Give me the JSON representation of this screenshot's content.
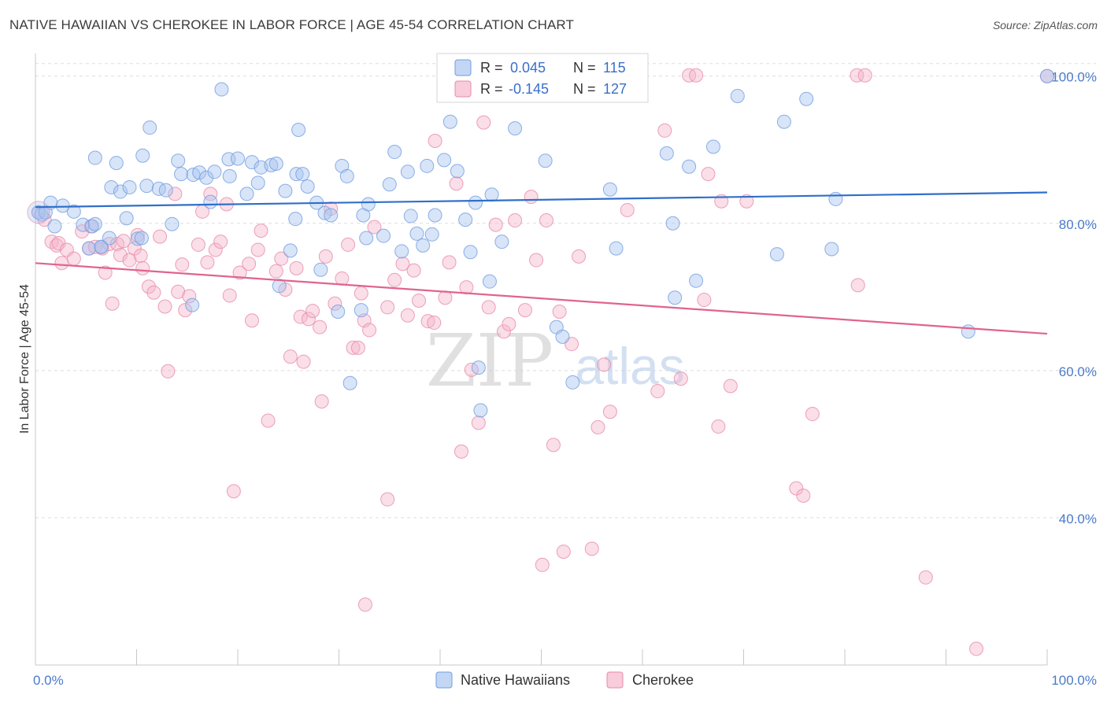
{
  "title": "NATIVE HAWAIIAN VS CHEROKEE IN LABOR FORCE | AGE 45-54 CORRELATION CHART",
  "source": "Source: ZipAtlas.com",
  "watermark": {
    "zip": "ZIP",
    "atlas": "atlas"
  },
  "legend": {
    "rows": [
      {
        "r_label": "R =",
        "r_value": "0.045",
        "n_label": "N =",
        "n_value": "115"
      },
      {
        "r_label": "R =",
        "r_value": "-0.145",
        "n_label": "N =",
        "n_value": "127"
      }
    ]
  },
  "bottom_legend": [
    "Native Hawaiians",
    "Cherokee"
  ],
  "colors": {
    "blue_fill": "#a9c4ef",
    "blue_stroke": "#6f9ee0",
    "blue_line": "#2f6fc9",
    "pink_fill": "#f5b6cb",
    "pink_stroke": "#e98aaa",
    "pink_line": "#e0648f",
    "grid": "#dddddd",
    "tick_text": "#4a7ac9"
  },
  "chart_data": {
    "type": "scatter",
    "title": "NATIVE HAWAIIAN VS CHEROKEE IN LABOR FORCE | AGE 45-54 CORRELATION CHART",
    "xlabel": "",
    "ylabel": "In Labor Force | Age 45-54",
    "xlim": [
      0,
      100
    ],
    "ylim": [
      20,
      102
    ],
    "x_tick_labels": [
      "0.0%",
      "100.0%"
    ],
    "y_ticks": [
      40,
      60,
      80,
      100
    ],
    "y_tick_labels": [
      "40.0%",
      "60.0%",
      "80.0%",
      "100.0%"
    ],
    "grid": true,
    "legend_position": "top-center",
    "series": [
      {
        "name": "Native Hawaiians",
        "R": 0.045,
        "N": 115,
        "trend": {
          "x": [
            0,
            100
          ],
          "y": [
            82.2,
            84.2
          ]
        },
        "points": [
          [
            0.3,
            81.5
          ],
          [
            0.6,
            81.2
          ],
          [
            1.0,
            81.5
          ],
          [
            1.5,
            82.8
          ],
          [
            1.9,
            79.6
          ],
          [
            2.7,
            82.4
          ],
          [
            3.8,
            81.6
          ],
          [
            4.7,
            79.8
          ],
          [
            5.6,
            79.6
          ],
          [
            5.3,
            76.6
          ],
          [
            5.9,
            79.9
          ],
          [
            6.5,
            76.8
          ],
          [
            6.5,
            76.8
          ],
          [
            5.9,
            88.9
          ],
          [
            7.3,
            78.0
          ],
          [
            7.5,
            84.9
          ],
          [
            8.0,
            88.2
          ],
          [
            8.4,
            84.3
          ],
          [
            9.0,
            80.7
          ],
          [
            9.3,
            84.9
          ],
          [
            10.1,
            77.9
          ],
          [
            10.5,
            78.0
          ],
          [
            10.6,
            89.2
          ],
          [
            11.0,
            85.1
          ],
          [
            11.3,
            93.0
          ],
          [
            12.2,
            84.7
          ],
          [
            12.9,
            84.5
          ],
          [
            13.5,
            79.9
          ],
          [
            14.1,
            88.5
          ],
          [
            14.4,
            86.7
          ],
          [
            15.6,
            86.6
          ],
          [
            15.5,
            68.9
          ],
          [
            16.2,
            86.9
          ],
          [
            16.9,
            86.2
          ],
          [
            17.3,
            82.9
          ],
          [
            17.7,
            87.0
          ],
          [
            18.4,
            98.2
          ],
          [
            19.2,
            86.4
          ],
          [
            19.1,
            88.7
          ],
          [
            20.0,
            88.8
          ],
          [
            20.9,
            84.0
          ],
          [
            21.4,
            88.3
          ],
          [
            22.0,
            85.5
          ],
          [
            22.3,
            87.6
          ],
          [
            23.3,
            87.9
          ],
          [
            23.8,
            88.1
          ],
          [
            24.1,
            71.5
          ],
          [
            24.7,
            84.4
          ],
          [
            25.2,
            76.3
          ],
          [
            25.7,
            80.6
          ],
          [
            25.8,
            86.7
          ],
          [
            26.4,
            86.7
          ],
          [
            26.0,
            92.7
          ],
          [
            26.9,
            85.0
          ],
          [
            27.8,
            82.8
          ],
          [
            28.2,
            73.7
          ],
          [
            28.6,
            81.4
          ],
          [
            29.2,
            81.1
          ],
          [
            29.9,
            68.0
          ],
          [
            30.3,
            87.8
          ],
          [
            30.8,
            86.4
          ],
          [
            31.1,
            58.3
          ],
          [
            32.2,
            68.2
          ],
          [
            32.4,
            81.1
          ],
          [
            32.7,
            78.0
          ],
          [
            32.9,
            82.6
          ],
          [
            34.4,
            78.3
          ],
          [
            35.0,
            85.3
          ],
          [
            35.5,
            89.7
          ],
          [
            36.2,
            76.2
          ],
          [
            36.8,
            87.0
          ],
          [
            37.1,
            81.0
          ],
          [
            37.7,
            78.6
          ],
          [
            38.3,
            77.0
          ],
          [
            38.7,
            87.8
          ],
          [
            39.2,
            78.5
          ],
          [
            39.5,
            81.1
          ],
          [
            40.4,
            88.6
          ],
          [
            40.7,
            100.1
          ],
          [
            41.0,
            93.8
          ],
          [
            41.7,
            87.1
          ],
          [
            42.5,
            80.5
          ],
          [
            43.0,
            76.1
          ],
          [
            43.5,
            82.8
          ],
          [
            43.8,
            60.4
          ],
          [
            44.0,
            54.6
          ],
          [
            44.1,
            98.1
          ],
          [
            44.9,
            72.1
          ],
          [
            45.1,
            83.9
          ],
          [
            46.1,
            77.5
          ],
          [
            47.4,
            92.9
          ],
          [
            48.0,
            100.1
          ],
          [
            50.4,
            88.5
          ],
          [
            51.5,
            65.9
          ],
          [
            52.1,
            64.6
          ],
          [
            53.1,
            58.4
          ],
          [
            55.4,
            100.1
          ],
          [
            56.2,
            100.1
          ],
          [
            56.8,
            84.6
          ],
          [
            57.4,
            76.6
          ],
          [
            62.4,
            89.5
          ],
          [
            63.0,
            80.0
          ],
          [
            63.2,
            69.9
          ],
          [
            64.6,
            87.7
          ],
          [
            65.3,
            72.2
          ],
          [
            67.0,
            90.4
          ],
          [
            69.4,
            97.3
          ],
          [
            73.3,
            75.8
          ],
          [
            74.0,
            93.8
          ],
          [
            76.2,
            96.9
          ],
          [
            78.7,
            76.5
          ],
          [
            79.1,
            83.3
          ],
          [
            92.2,
            65.3
          ],
          [
            100.0,
            100.0
          ]
        ]
      },
      {
        "name": "Cherokee",
        "R": -0.145,
        "N": 127,
        "trend": {
          "x": [
            0,
            100
          ],
          "y": [
            74.6,
            65.0
          ]
        },
        "points": [
          [
            0.3,
            81.5
          ],
          [
            0.9,
            80.5
          ],
          [
            1.6,
            77.5
          ],
          [
            2.1,
            77.0
          ],
          [
            2.3,
            77.3
          ],
          [
            2.6,
            74.6
          ],
          [
            3.1,
            76.4
          ],
          [
            3.8,
            75.2
          ],
          [
            4.6,
            78.9
          ],
          [
            5.3,
            76.6
          ],
          [
            5.5,
            79.6
          ],
          [
            5.9,
            76.8
          ],
          [
            6.6,
            76.6
          ],
          [
            6.9,
            73.3
          ],
          [
            7.3,
            77.2
          ],
          [
            7.6,
            69.1
          ],
          [
            8.1,
            77.2
          ],
          [
            8.4,
            75.7
          ],
          [
            8.7,
            77.6
          ],
          [
            9.3,
            75.0
          ],
          [
            9.8,
            76.6
          ],
          [
            10.1,
            78.4
          ],
          [
            10.4,
            75.6
          ],
          [
            10.6,
            73.9
          ],
          [
            11.2,
            71.4
          ],
          [
            11.7,
            70.6
          ],
          [
            12.3,
            78.2
          ],
          [
            12.8,
            68.7
          ],
          [
            13.1,
            59.9
          ],
          [
            13.8,
            84.0
          ],
          [
            14.1,
            70.7
          ],
          [
            14.5,
            74.4
          ],
          [
            14.8,
            68.2
          ],
          [
            15.2,
            70.1
          ],
          [
            16.1,
            77.1
          ],
          [
            16.5,
            81.6
          ],
          [
            17.0,
            74.7
          ],
          [
            17.3,
            84.0
          ],
          [
            17.8,
            76.4
          ],
          [
            18.3,
            77.5
          ],
          [
            18.9,
            82.6
          ],
          [
            19.2,
            70.2
          ],
          [
            19.6,
            43.6
          ],
          [
            20.2,
            73.3
          ],
          [
            21.1,
            74.5
          ],
          [
            21.4,
            66.8
          ],
          [
            22.0,
            76.4
          ],
          [
            22.3,
            79.0
          ],
          [
            23.0,
            53.2
          ],
          [
            23.8,
            73.5
          ],
          [
            24.3,
            75.2
          ],
          [
            24.7,
            71.0
          ],
          [
            25.2,
            61.9
          ],
          [
            25.8,
            73.9
          ],
          [
            26.2,
            67.3
          ],
          [
            26.5,
            61.2
          ],
          [
            27.0,
            67.0
          ],
          [
            27.4,
            68.1
          ],
          [
            28.1,
            65.9
          ],
          [
            28.3,
            55.8
          ],
          [
            28.7,
            75.5
          ],
          [
            29.2,
            82.0
          ],
          [
            29.6,
            69.1
          ],
          [
            30.3,
            72.5
          ],
          [
            30.9,
            77.1
          ],
          [
            31.4,
            63.1
          ],
          [
            31.9,
            63.1
          ],
          [
            32.2,
            70.5
          ],
          [
            32.5,
            66.8
          ],
          [
            32.6,
            28.2
          ],
          [
            33.0,
            65.5
          ],
          [
            33.5,
            79.5
          ],
          [
            34.8,
            42.5
          ],
          [
            34.8,
            68.6
          ],
          [
            35.5,
            72.3
          ],
          [
            36.3,
            74.5
          ],
          [
            36.8,
            67.5
          ],
          [
            37.4,
            73.6
          ],
          [
            37.9,
            69.5
          ],
          [
            38.8,
            66.7
          ],
          [
            39.4,
            66.5
          ],
          [
            39.5,
            91.2
          ],
          [
            40.5,
            69.9
          ],
          [
            40.9,
            74.7
          ],
          [
            41.6,
            85.4
          ],
          [
            42.1,
            49.0
          ],
          [
            42.6,
            71.3
          ],
          [
            43.1,
            60.1
          ],
          [
            43.8,
            52.9
          ],
          [
            44.3,
            93.7
          ],
          [
            44.8,
            68.6
          ],
          [
            45.5,
            79.8
          ],
          [
            46.3,
            65.3
          ],
          [
            46.8,
            66.3
          ],
          [
            47.4,
            80.4
          ],
          [
            48.4,
            68.2
          ],
          [
            49.0,
            83.6
          ],
          [
            49.5,
            75.0
          ],
          [
            50.1,
            33.6
          ],
          [
            50.5,
            80.4
          ],
          [
            51.2,
            49.9
          ],
          [
            51.8,
            68.0
          ],
          [
            52.2,
            35.4
          ],
          [
            53.0,
            63.6
          ],
          [
            53.7,
            75.5
          ],
          [
            55.0,
            35.8
          ],
          [
            55.6,
            52.3
          ],
          [
            56.2,
            60.8
          ],
          [
            56.8,
            54.4
          ],
          [
            58.5,
            81.8
          ],
          [
            61.5,
            57.2
          ],
          [
            62.2,
            92.6
          ],
          [
            63.8,
            58.9
          ],
          [
            64.6,
            100.1
          ],
          [
            65.3,
            100.1
          ],
          [
            66.1,
            69.6
          ],
          [
            66.5,
            86.7
          ],
          [
            67.5,
            52.4
          ],
          [
            67.8,
            83.0
          ],
          [
            68.7,
            57.9
          ],
          [
            70.3,
            83.0
          ],
          [
            75.2,
            44.0
          ],
          [
            75.9,
            43.0
          ],
          [
            76.8,
            54.1
          ],
          [
            81.2,
            100.1
          ],
          [
            81.3,
            71.6
          ],
          [
            82.0,
            100.1
          ],
          [
            88.0,
            31.9
          ],
          [
            93.0,
            22.2
          ],
          [
            100.0,
            100.0
          ]
        ]
      }
    ]
  }
}
